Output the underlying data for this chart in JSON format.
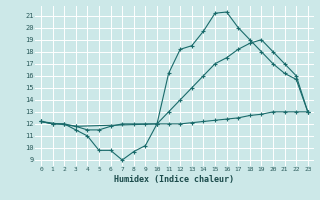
{
  "xlabel": "Humidex (Indice chaleur)",
  "bg_color": "#cce8e8",
  "grid_color": "#ffffff",
  "line_color": "#1a6b6b",
  "xlim": [
    -0.5,
    23.5
  ],
  "ylim": [
    8.5,
    21.8
  ],
  "yticks": [
    9,
    10,
    11,
    12,
    13,
    14,
    15,
    16,
    17,
    18,
    19,
    20,
    21
  ],
  "xticks": [
    0,
    1,
    2,
    3,
    4,
    5,
    6,
    7,
    8,
    9,
    10,
    11,
    12,
    13,
    14,
    15,
    16,
    17,
    18,
    19,
    20,
    21,
    22,
    23
  ],
  "line1_x": [
    0,
    1,
    2,
    3,
    4,
    5,
    6,
    7,
    8,
    9,
    10,
    11,
    12,
    13,
    14,
    15,
    16,
    17,
    18,
    19,
    20,
    21,
    22,
    23
  ],
  "line1_y": [
    12.2,
    12.0,
    12.0,
    11.5,
    11.0,
    9.8,
    9.8,
    9.0,
    9.7,
    10.2,
    12.0,
    16.2,
    18.2,
    18.5,
    19.7,
    21.2,
    21.3,
    20.0,
    19.0,
    18.0,
    17.0,
    16.2,
    15.7,
    13.0
  ],
  "line2_x": [
    0,
    3,
    10,
    11,
    12,
    13,
    14,
    15,
    16,
    17,
    18,
    19,
    20,
    21,
    22,
    23
  ],
  "line2_y": [
    12.2,
    11.8,
    12.0,
    13.0,
    14.0,
    15.0,
    16.0,
    17.0,
    17.5,
    18.2,
    18.7,
    19.0,
    18.0,
    17.0,
    16.0,
    13.0
  ],
  "line3_x": [
    0,
    1,
    2,
    3,
    4,
    5,
    6,
    7,
    8,
    9,
    10,
    11,
    12,
    13,
    14,
    15,
    16,
    17,
    18,
    19,
    20,
    21,
    22,
    23
  ],
  "line3_y": [
    12.2,
    12.0,
    12.0,
    11.8,
    11.5,
    11.5,
    11.8,
    12.0,
    12.0,
    12.0,
    12.0,
    12.0,
    12.0,
    12.1,
    12.2,
    12.3,
    12.4,
    12.5,
    12.7,
    12.8,
    13.0,
    13.0,
    13.0,
    13.0
  ]
}
